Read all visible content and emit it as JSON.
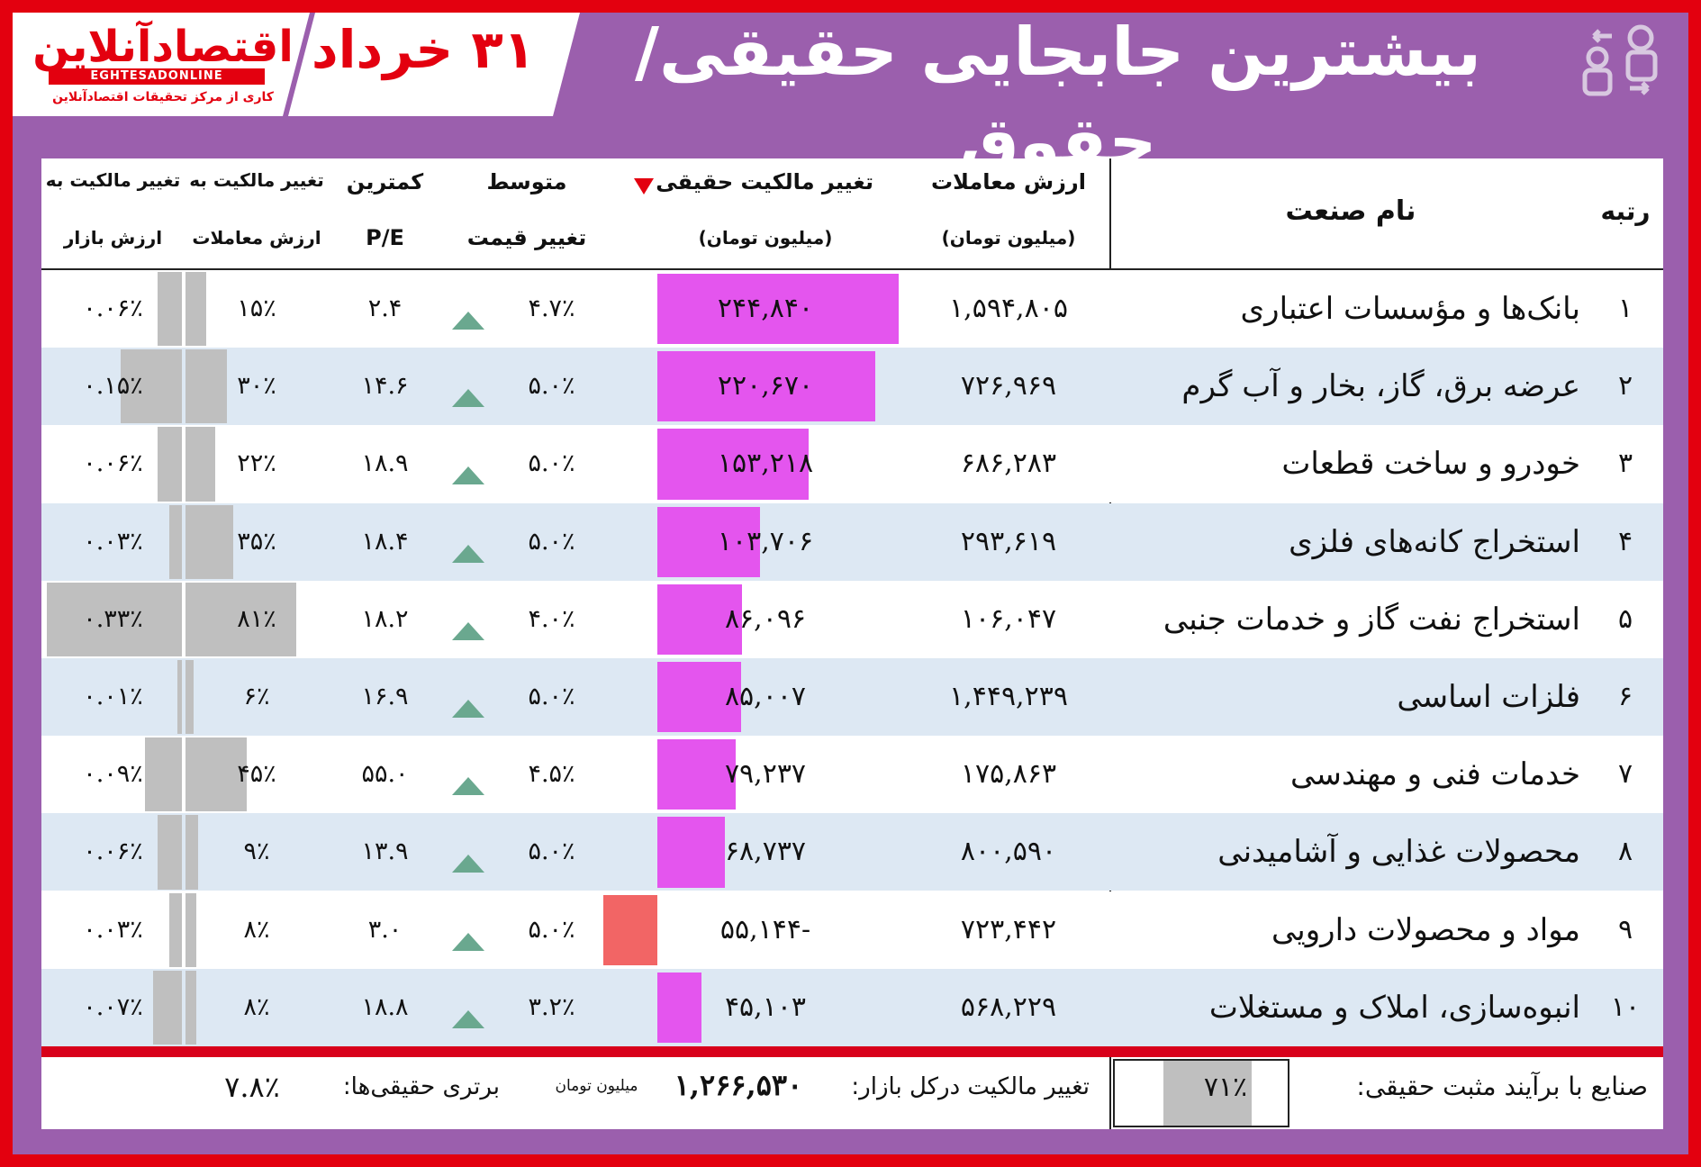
{
  "header": {
    "logo_title": "اقتصادآنلاین",
    "logo_sub": "EGHTESADONLINE",
    "logo_tag": "کاری از مرکز تحقیقات اقتصادآنلاین",
    "date": "۳۱ خرداد",
    "title": "بیشترین جابجایی حقیقی/حقوق"
  },
  "columns": {
    "rank": "رتبه",
    "industry": "نام صنعت",
    "trade_value_1": "ارزش معاملات",
    "trade_value_2": "(میلیون تومان)",
    "own_change_1": "تغییر مالکیت حقیقی",
    "own_change_2": "(میلیون تومان)",
    "avg_change_1": "متوسط",
    "avg_change_2": "تغییر قیمت",
    "pe_1": "کمترین",
    "pe_2": "P/E",
    "own_trade_1": "تغییر مالکیت به",
    "own_trade_2": "ارزش معاملات",
    "own_mkt_1": "تغییر مالکیت به",
    "own_mkt_2": "ارزش بازار"
  },
  "colors": {
    "frame": "#e3000f",
    "panel": "#9b5fad",
    "row_alt": "#dde8f3",
    "positive_bar": "#e455ee",
    "negative_bar": "#f26565",
    "gray_bar": "#bfbfbf",
    "triangle_up": "#6aa88f",
    "sort_arrow": "#e3000f"
  },
  "chart_data": {
    "type": "table",
    "rows": [
      {
        "rank": "۱",
        "industry": "بانک‌ها و مؤسسات اعتباری",
        "trade_value": "۱,۵۹۴,۸۰۵",
        "own_change": "۲۴۴,۸۴۰",
        "own_change_num": 244840,
        "avg_change": "۴.۷٪",
        "pe": "۲.۴",
        "own_trade": "۱۵٪",
        "own_trade_num": 15,
        "own_mkt": "۰.۰۶٪",
        "own_mkt_num": 0.06
      },
      {
        "rank": "۲",
        "industry": "عرضه برق، گاز، بخار و آب گرم",
        "trade_value": "۷۲۶,۹۶۹",
        "own_change": "۲۲۰,۶۷۰",
        "own_change_num": 220670,
        "avg_change": "۵.۰٪",
        "pe": "۱۴.۶",
        "own_trade": "۳۰٪",
        "own_trade_num": 30,
        "own_mkt": "۰.۱۵٪",
        "own_mkt_num": 0.15
      },
      {
        "rank": "۳",
        "industry": "خودرو و ساخت قطعات",
        "trade_value": "۶۸۶,۲۸۳",
        "own_change": "۱۵۳,۲۱۸",
        "own_change_num": 153218,
        "avg_change": "۵.۰٪",
        "pe": "۱۸.۹",
        "own_trade": "۲۲٪",
        "own_trade_num": 22,
        "own_mkt": "۰.۰۶٪",
        "own_mkt_num": 0.06
      },
      {
        "rank": "۴",
        "industry": "استخراج کانه‌های فلزی",
        "trade_value": "۲۹۳,۶۱۹",
        "own_change": "۱۰۳,۷۰۶",
        "own_change_num": 103706,
        "avg_change": "۵.۰٪",
        "pe": "۱۸.۴",
        "own_trade": "۳۵٪",
        "own_trade_num": 35,
        "own_mkt": "۰.۰۳٪",
        "own_mkt_num": 0.03
      },
      {
        "rank": "۵",
        "industry": "استخراج نفت گاز و خدمات جنبی",
        "trade_value": "۱۰۶,۰۴۷",
        "own_change": "۸۶,۰۹۶",
        "own_change_num": 86096,
        "avg_change": "۴.۰٪",
        "pe": "۱۸.۲",
        "own_trade": "۸۱٪",
        "own_trade_num": 81,
        "own_mkt": "۰.۳۳٪",
        "own_mkt_num": 0.33
      },
      {
        "rank": "۶",
        "industry": "فلزات اساسی",
        "trade_value": "۱,۴۴۹,۲۳۹",
        "own_change": "۸۵,۰۰۷",
        "own_change_num": 85007,
        "avg_change": "۵.۰٪",
        "pe": "۱۶.۹",
        "own_trade": "۶٪",
        "own_trade_num": 6,
        "own_mkt": "۰.۰۱٪",
        "own_mkt_num": 0.01
      },
      {
        "rank": "۷",
        "industry": "خدمات فنی و مهندسی",
        "trade_value": "۱۷۵,۸۶۳",
        "own_change": "۷۹,۲۳۷",
        "own_change_num": 79237,
        "avg_change": "۴.۵٪",
        "pe": "۵۵.۰",
        "own_trade": "۴۵٪",
        "own_trade_num": 45,
        "own_mkt": "۰.۰۹٪",
        "own_mkt_num": 0.09
      },
      {
        "rank": "۸",
        "industry": "محصولات غذایی و آشامیدنی",
        "trade_value": "۸۰۰,۵۹۰",
        "own_change": "۶۸,۷۳۷",
        "own_change_num": 68737,
        "avg_change": "۵.۰٪",
        "pe": "۱۳.۹",
        "own_trade": "۹٪",
        "own_trade_num": 9,
        "own_mkt": "۰.۰۶٪",
        "own_mkt_num": 0.06
      },
      {
        "rank": "۹",
        "industry": "مواد و محصولات دارویی",
        "trade_value": "۷۲۳,۴۴۲",
        "own_change": "-۵۵,۱۴۴",
        "own_change_num": -55144,
        "avg_change": "۵.۰٪",
        "pe": "۳.۰",
        "own_trade": "۸٪",
        "own_trade_num": 8,
        "own_mkt": "۰.۰۳٪",
        "own_mkt_num": 0.03
      },
      {
        "rank": "۱۰",
        "industry": "انبوه‌سازی، املاک و مستغلات",
        "trade_value": "۵۶۸,۲۲۹",
        "own_change": "۴۵,۱۰۳",
        "own_change_num": 45103,
        "avg_change": "۳.۲٪",
        "pe": "۱۸.۸",
        "own_trade": "۸٪",
        "own_trade_num": 8,
        "own_mkt": "۰.۰۷٪",
        "own_mkt_num": 0.07
      }
    ]
  },
  "footer": {
    "positive_label": "صنایع با برآیند مثبت حقیقی:",
    "positive_value": "۷۱٪",
    "positive_num": 71,
    "total_label": "تغییر مالکیت درکل بازار:",
    "total_value": "۱,۲۶۶,۵۳۰",
    "total_unit": "میلیون تومان",
    "real_label": "برتری حقیقی‌ها:",
    "real_value": "۷.۸٪"
  }
}
